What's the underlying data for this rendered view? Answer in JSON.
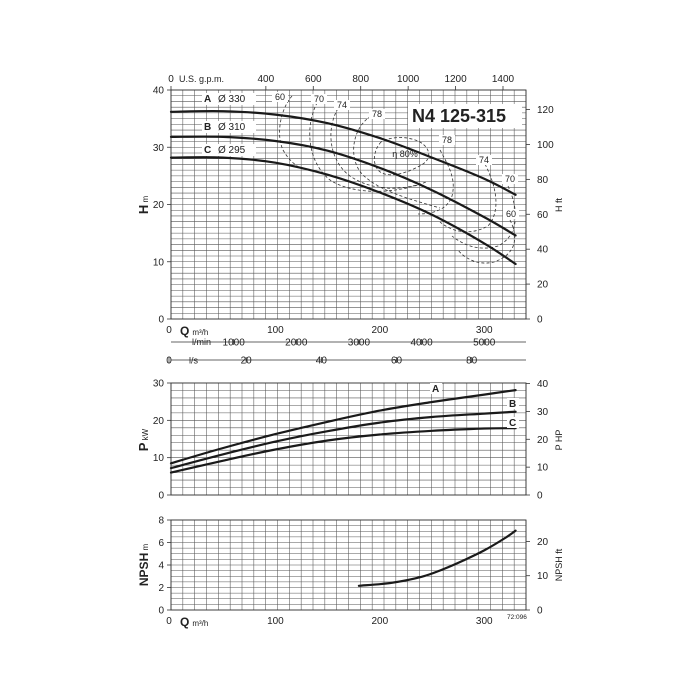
{
  "chart_data": [
    {
      "type": "line",
      "name": "head",
      "title": "N4 125-315",
      "x_unit": "m³/h",
      "x_range": [
        0,
        340
      ],
      "y_unit": "m",
      "ylabel": "H",
      "ylim": [
        0,
        40
      ],
      "y_ticks": [
        0,
        10,
        20,
        30,
        40
      ],
      "y2_label": "H ft",
      "y2_ticks": [
        0,
        20,
        40,
        60,
        80,
        100,
        120
      ],
      "y2_max": 131.2,
      "top_axis": {
        "label": "U.S. g.p.m.",
        "ticks": [
          0,
          400,
          600,
          800,
          1000,
          1200,
          1400
        ],
        "factor": 4.403
      },
      "x_ticks": [
        0,
        100,
        200,
        300
      ],
      "lpm_axis": {
        "label": "l/min",
        "ticks": [
          1000,
          2000,
          3000,
          4000,
          5000
        ],
        "factor": 16.667
      },
      "lps_axis": {
        "label": "l/s",
        "ticks": [
          0,
          20,
          40,
          60,
          80
        ],
        "factor": 0.2778
      },
      "series": [
        {
          "name": "A",
          "label": "A",
          "diameter": "Ø 330",
          "x": [
            0,
            50,
            100,
            150,
            200,
            250,
            300,
            330
          ],
          "y": [
            36.2,
            36.3,
            35.7,
            34.2,
            31.6,
            28.2,
            24.5,
            21.7
          ]
        },
        {
          "name": "B",
          "label": "B",
          "diameter": "Ø 310",
          "x": [
            0,
            50,
            100,
            150,
            200,
            250,
            300,
            330
          ],
          "y": [
            31.8,
            31.8,
            31.1,
            29.4,
            26.4,
            22.5,
            17.8,
            14.6
          ]
        },
        {
          "name": "C",
          "label": "C",
          "diameter": "Ø 295",
          "x": [
            0,
            50,
            100,
            150,
            200,
            250,
            300,
            330
          ],
          "y": [
            28.2,
            28.2,
            27.3,
            25.2,
            22.1,
            18.2,
            13.2,
            9.6
          ]
        }
      ],
      "efficiency": {
        "prefix": "η",
        "labels": [
          "60",
          "70",
          "74",
          "78",
          "80%",
          "78",
          "74",
          "70",
          "60"
        ]
      }
    },
    {
      "type": "line",
      "name": "power",
      "x_unit": "m³/h",
      "ylabel": "P",
      "y_unit": "kW",
      "ylim": [
        0,
        30
      ],
      "y_ticks": [
        0,
        10,
        20,
        30
      ],
      "y2_label": "P HP",
      "y2_ticks": [
        0,
        10,
        20,
        30,
        40
      ],
      "y2_max": 40.2,
      "series": [
        {
          "name": "A",
          "label": "A",
          "x": [
            0,
            50,
            100,
            150,
            200,
            250,
            300,
            330
          ],
          "y": [
            8.5,
            12.6,
            16.3,
            19.6,
            22.6,
            24.9,
            26.9,
            28.1
          ]
        },
        {
          "name": "B",
          "label": "B",
          "x": [
            0,
            50,
            100,
            150,
            200,
            250,
            300,
            330
          ],
          "y": [
            7.2,
            10.9,
            14.3,
            17.1,
            19.4,
            20.9,
            21.8,
            22.3
          ]
        },
        {
          "name": "C",
          "label": "C",
          "x": [
            0,
            50,
            100,
            150,
            200,
            250,
            300,
            330
          ],
          "y": [
            6.0,
            9.2,
            12.2,
            14.6,
            16.2,
            17.2,
            17.8,
            17.9
          ]
        }
      ]
    },
    {
      "type": "line",
      "name": "npsh",
      "x_unit": "m³/h",
      "x_ticks": [
        0,
        100,
        200,
        300
      ],
      "ylabel": "NPSH",
      "y_unit": "m",
      "ylim": [
        0,
        8
      ],
      "y_ticks": [
        0,
        2,
        4,
        6,
        8
      ],
      "y2_label": "NPSH ft",
      "y2_ticks": [
        0,
        10,
        20
      ],
      "y2_max": 26.25,
      "series": [
        {
          "name": "NPSH",
          "x": [
            180,
            210,
            240,
            260,
            280,
            300,
            320,
            330
          ],
          "y": [
            2.15,
            2.4,
            2.95,
            3.6,
            4.4,
            5.3,
            6.4,
            7.05
          ]
        }
      ]
    }
  ],
  "footer_code": "72:096"
}
